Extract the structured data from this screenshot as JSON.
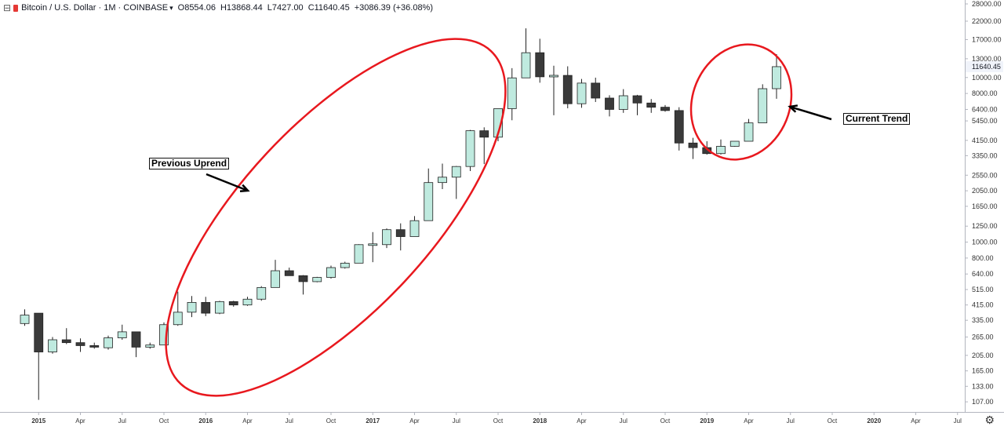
{
  "legend": {
    "symbol_icon": "chart-toggle-icon",
    "logo_icon": "coinbase-logo-icon",
    "title": "Bitcoin / U.S. Dollar · 1M · COINBASE",
    "open": "O8554.06",
    "high": "H13868.44",
    "low": "L7427.00",
    "close": "C11640.45",
    "change": "+3086.39 (+36.08%)"
  },
  "annotations": {
    "previous": "Previous Uprend",
    "current": "Current Trend"
  },
  "colors": {
    "up_fill": "#bfeadf",
    "down_fill": "#3a3a3a",
    "ellipse": "#e8181e",
    "price_label_bg": "#f0f3fa"
  },
  "chart_data": {
    "type": "candlestick",
    "title": "Bitcoin / U.S. Dollar · 1M · COINBASE",
    "price_scale": "log",
    "y_ticks": [
      "107.00",
      "133.00",
      "165.00",
      "205.00",
      "265.00",
      "335.00",
      "415.00",
      "515.00",
      "640.00",
      "800.00",
      "1000.00",
      "1250.00",
      "1650.00",
      "2050.00",
      "2550.00",
      "3350.00",
      "4150.00",
      "5450.00",
      "6400.00",
      "8000.00",
      "10000.00",
      "13000.00",
      "17000.00",
      "22000.00",
      "28000.00"
    ],
    "last_price_label": "11640.45",
    "x_ticks": [
      "2015",
      "Apr",
      "Jul",
      "Oct",
      "2016",
      "Apr",
      "Jul",
      "Oct",
      "2017",
      "Apr",
      "Jul",
      "Oct",
      "2018",
      "Apr",
      "Jul",
      "Oct",
      "2019",
      "Apr",
      "Jul",
      "Oct",
      "2020",
      "Apr",
      "Jul"
    ],
    "candles": [
      {
        "t": "2014-12",
        "o": 320,
        "h": 390,
        "l": 310,
        "c": 360
      },
      {
        "t": "2015-01",
        "o": 370,
        "h": 370,
        "l": 110,
        "c": 215
      },
      {
        "t": "2015-02",
        "o": 215,
        "h": 265,
        "l": 210,
        "c": 255
      },
      {
        "t": "2015-03",
        "o": 255,
        "h": 300,
        "l": 240,
        "c": 245
      },
      {
        "t": "2015-04",
        "o": 245,
        "h": 260,
        "l": 215,
        "c": 235
      },
      {
        "t": "2015-05",
        "o": 235,
        "h": 245,
        "l": 225,
        "c": 230
      },
      {
        "t": "2015-06",
        "o": 228,
        "h": 270,
        "l": 222,
        "c": 262
      },
      {
        "t": "2015-07",
        "o": 262,
        "h": 315,
        "l": 255,
        "c": 285
      },
      {
        "t": "2015-08",
        "o": 285,
        "h": 285,
        "l": 200,
        "c": 230
      },
      {
        "t": "2015-09",
        "o": 230,
        "h": 245,
        "l": 225,
        "c": 237
      },
      {
        "t": "2015-10",
        "o": 237,
        "h": 325,
        "l": 237,
        "c": 315
      },
      {
        "t": "2015-11",
        "o": 315,
        "h": 500,
        "l": 310,
        "c": 375
      },
      {
        "t": "2015-12",
        "o": 375,
        "h": 470,
        "l": 350,
        "c": 430
      },
      {
        "t": "2016-01",
        "o": 430,
        "h": 465,
        "l": 355,
        "c": 370
      },
      {
        "t": "2016-02",
        "o": 370,
        "h": 440,
        "l": 365,
        "c": 435
      },
      {
        "t": "2016-03",
        "o": 435,
        "h": 440,
        "l": 405,
        "c": 415
      },
      {
        "t": "2016-04",
        "o": 415,
        "h": 465,
        "l": 410,
        "c": 450
      },
      {
        "t": "2016-05",
        "o": 450,
        "h": 540,
        "l": 440,
        "c": 530
      },
      {
        "t": "2016-06",
        "o": 530,
        "h": 780,
        "l": 530,
        "c": 670
      },
      {
        "t": "2016-07",
        "o": 670,
        "h": 700,
        "l": 640,
        "c": 625
      },
      {
        "t": "2016-08",
        "o": 625,
        "h": 630,
        "l": 480,
        "c": 575
      },
      {
        "t": "2016-09",
        "o": 575,
        "h": 615,
        "l": 570,
        "c": 610
      },
      {
        "t": "2016-10",
        "o": 610,
        "h": 720,
        "l": 600,
        "c": 700
      },
      {
        "t": "2016-11",
        "o": 700,
        "h": 760,
        "l": 690,
        "c": 745
      },
      {
        "t": "2016-12",
        "o": 745,
        "h": 970,
        "l": 745,
        "c": 965
      },
      {
        "t": "2017-01",
        "o": 965,
        "h": 1150,
        "l": 755,
        "c": 965
      },
      {
        "t": "2017-02",
        "o": 965,
        "h": 1210,
        "l": 920,
        "c": 1190
      },
      {
        "t": "2017-03",
        "o": 1190,
        "h": 1300,
        "l": 890,
        "c": 1080
      },
      {
        "t": "2017-04",
        "o": 1080,
        "h": 1440,
        "l": 1080,
        "c": 1350
      },
      {
        "t": "2017-05",
        "o": 1350,
        "h": 2800,
        "l": 1350,
        "c": 2300
      },
      {
        "t": "2017-06",
        "o": 2300,
        "h": 3000,
        "l": 2100,
        "c": 2480
      },
      {
        "t": "2017-07",
        "o": 2480,
        "h": 2900,
        "l": 1830,
        "c": 2880
      },
      {
        "t": "2017-08",
        "o": 2880,
        "h": 4800,
        "l": 2700,
        "c": 4750
      },
      {
        "t": "2017-09",
        "o": 4750,
        "h": 4980,
        "l": 2980,
        "c": 4340
      },
      {
        "t": "2017-10",
        "o": 4340,
        "h": 6400,
        "l": 4100,
        "c": 6470
      },
      {
        "t": "2017-11",
        "o": 6470,
        "h": 11400,
        "l": 5500,
        "c": 9950
      },
      {
        "t": "2017-12",
        "o": 9950,
        "h": 19890,
        "l": 9930,
        "c": 14150
      },
      {
        "t": "2018-01",
        "o": 14150,
        "h": 17200,
        "l": 9300,
        "c": 10100
      },
      {
        "t": "2018-02",
        "o": 10100,
        "h": 11800,
        "l": 5900,
        "c": 10300
      },
      {
        "t": "2018-03",
        "o": 10300,
        "h": 11700,
        "l": 6500,
        "c": 6930
      },
      {
        "t": "2018-04",
        "o": 6930,
        "h": 9800,
        "l": 6550,
        "c": 9250
      },
      {
        "t": "2018-05",
        "o": 9250,
        "h": 9980,
        "l": 7100,
        "c": 7500
      },
      {
        "t": "2018-06",
        "o": 7500,
        "h": 7800,
        "l": 5800,
        "c": 6400
      },
      {
        "t": "2018-07",
        "o": 6400,
        "h": 8500,
        "l": 6100,
        "c": 7750
      },
      {
        "t": "2018-08",
        "o": 7750,
        "h": 7850,
        "l": 5900,
        "c": 7000
      },
      {
        "t": "2018-09",
        "o": 7000,
        "h": 7400,
        "l": 6100,
        "c": 6600
      },
      {
        "t": "2018-10",
        "o": 6600,
        "h": 6800,
        "l": 6200,
        "c": 6300
      },
      {
        "t": "2018-11",
        "o": 6300,
        "h": 6600,
        "l": 3600,
        "c": 4000
      },
      {
        "t": "2018-12",
        "o": 4000,
        "h": 4300,
        "l": 3200,
        "c": 3750
      },
      {
        "t": "2019-01",
        "o": 3750,
        "h": 4100,
        "l": 3400,
        "c": 3450
      },
      {
        "t": "2019-02",
        "o": 3450,
        "h": 4200,
        "l": 3400,
        "c": 3820
      },
      {
        "t": "2019-03",
        "o": 3820,
        "h": 4100,
        "l": 3800,
        "c": 4100
      },
      {
        "t": "2019-04",
        "o": 4100,
        "h": 5600,
        "l": 4100,
        "c": 5300
      },
      {
        "t": "2019-05",
        "o": 5300,
        "h": 9100,
        "l": 5300,
        "c": 8554
      },
      {
        "t": "2019-06",
        "o": 8554.06,
        "h": 13868.44,
        "l": 7427.0,
        "c": 11640.45
      }
    ]
  }
}
